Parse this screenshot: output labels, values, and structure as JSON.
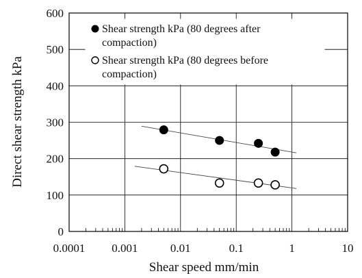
{
  "chart_data": {
    "type": "scatter",
    "xlabel": "Shear speed mm/min",
    "ylabel": "Direct shear strength kPa",
    "xscale": "log",
    "xlim": [
      0.0001,
      10
    ],
    "ylim": [
      0,
      600
    ],
    "x_ticks": [
      "0.0001",
      "0.001",
      "0.01",
      "0.1",
      "1",
      "10"
    ],
    "y_ticks": [
      "0",
      "100",
      "200",
      "300",
      "400",
      "500",
      "600"
    ],
    "grid": true,
    "legend_position": "top-left",
    "series": [
      {
        "name": "Shear strength kPa (80 degrees after compaction)",
        "legend_lines": [
          "Shear strength kPa (80 degrees after",
          "compaction)"
        ],
        "marker": "filled-circle",
        "color": "#000000",
        "x": [
          0.005,
          0.05,
          0.25,
          0.5
        ],
        "y": [
          279,
          250,
          242,
          218
        ],
        "trendline": {
          "x": [
            0.002,
            1.2
          ],
          "y": [
            289,
            216
          ]
        }
      },
      {
        "name": "Shear strength kPa (80 degrees before compaction)",
        "legend_lines": [
          "Shear strength kPa (80 degrees before",
          "compaction)"
        ],
        "marker": "open-circle",
        "color": "#000000",
        "x": [
          0.005,
          0.05,
          0.25,
          0.5
        ],
        "y": [
          172,
          133,
          133,
          128
        ],
        "trendline": {
          "x": [
            0.0015,
            1.2
          ],
          "y": [
            179,
            118
          ]
        }
      }
    ]
  }
}
